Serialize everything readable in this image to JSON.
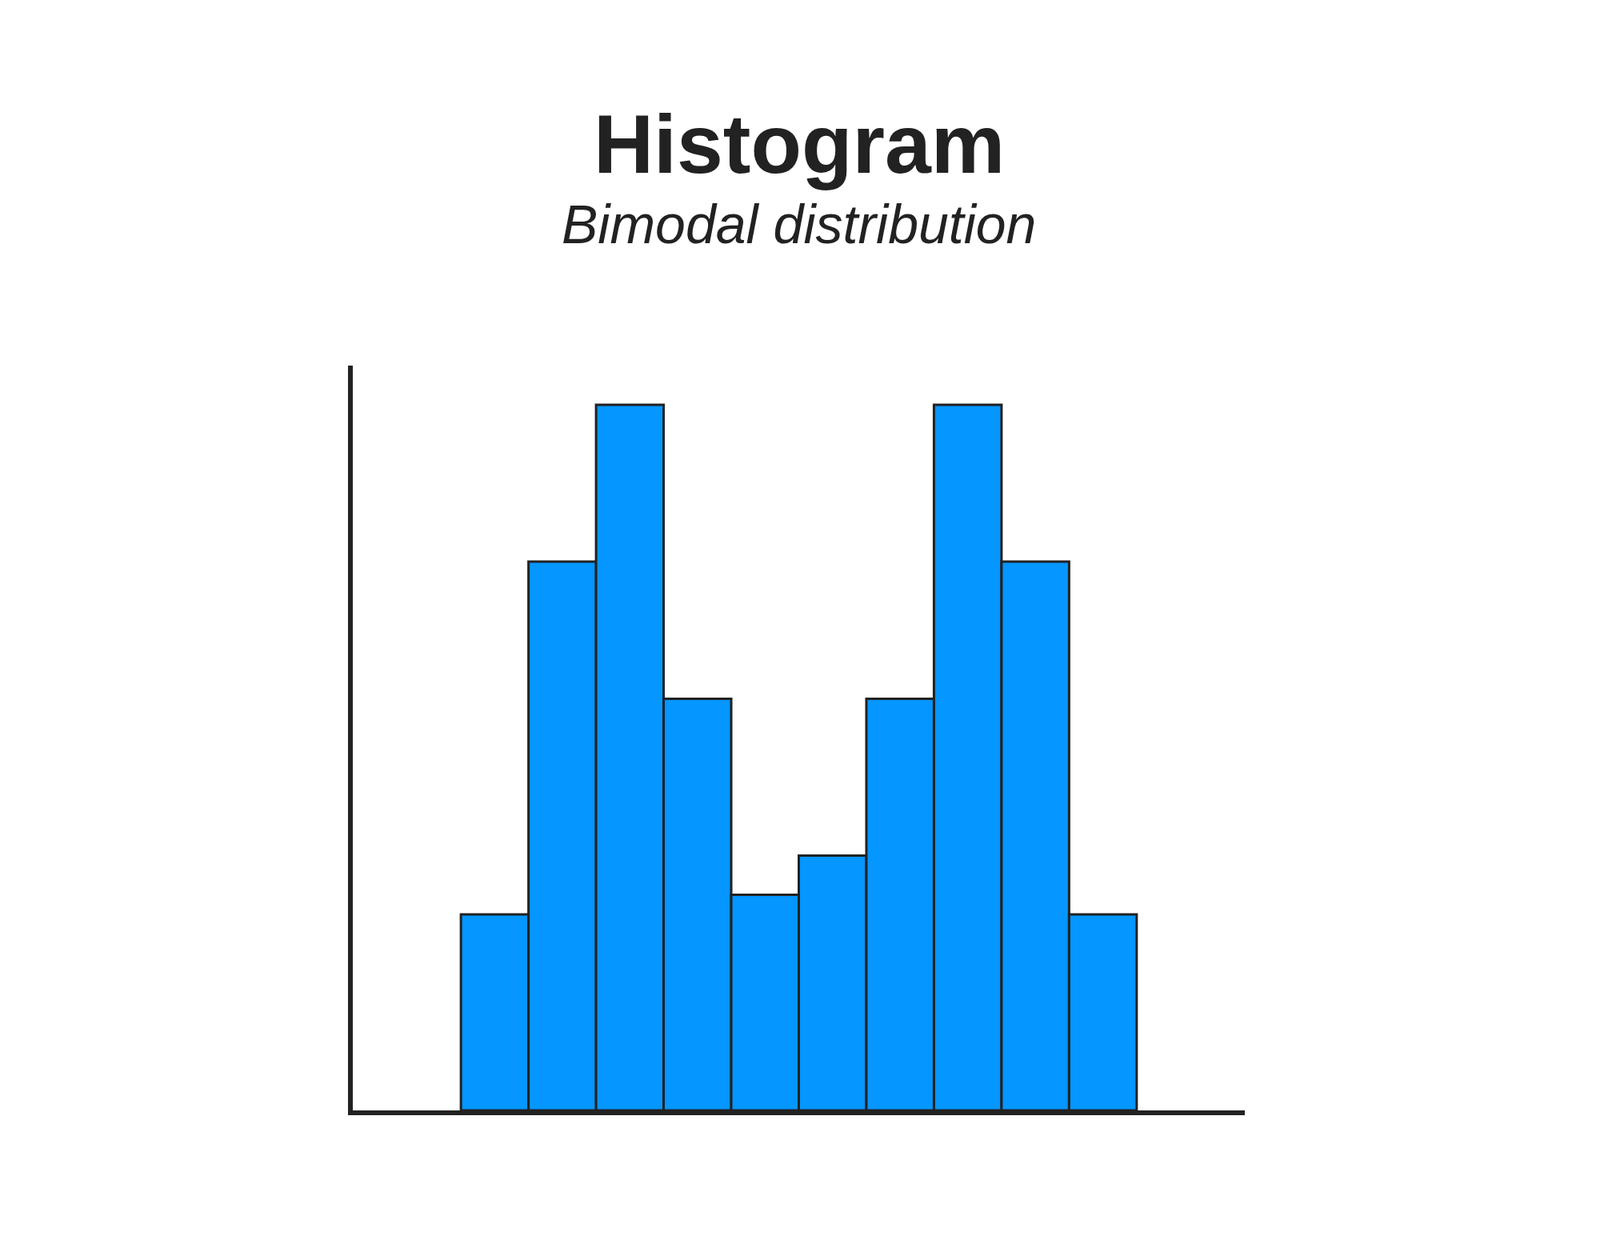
{
  "chart_data": {
    "type": "histogram",
    "title": "Histogram",
    "subtitle": "Bimodal distribution",
    "bins": [
      0,
      1,
      2,
      3,
      4,
      5,
      6,
      7,
      8,
      9,
      10
    ],
    "values": [
      10,
      28,
      36,
      21,
      11,
      13,
      21,
      36,
      28,
      10
    ],
    "color": "#0596ff",
    "xlim": [
      -1.6,
      11.6
    ],
    "ylim": [
      0,
      38
    ],
    "grid": false,
    "tick_labels": false
  }
}
